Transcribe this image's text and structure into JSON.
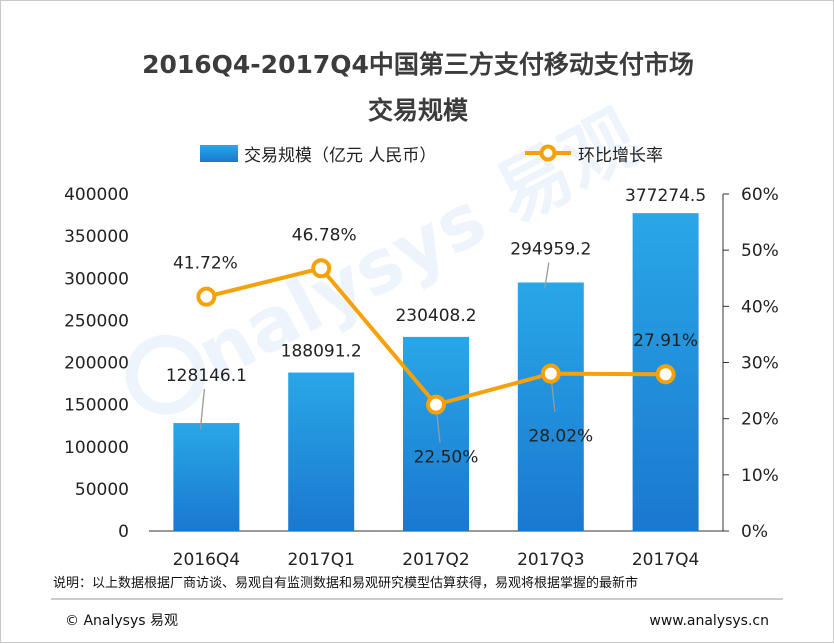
{
  "chart_data": {
    "type": "bar",
    "title_line1": "2016Q4-2017Q4中国第三方支付移动支付市场",
    "title_line2": "交易规模",
    "categories": [
      "2016Q4",
      "2017Q1",
      "2017Q2",
      "2017Q3",
      "2017Q4"
    ],
    "series": [
      {
        "name": "交易规模（亿元 人民币）",
        "type": "bar",
        "axis": "left",
        "values": [
          128146.1,
          188091.2,
          230408.2,
          294959.2,
          377274.5
        ],
        "labels": [
          "128146.1",
          "188091.2",
          "230408.2",
          "294959.2",
          "377274.5"
        ]
      },
      {
        "name": "环比增长率",
        "type": "line",
        "axis": "right",
        "values": [
          41.72,
          46.78,
          22.5,
          28.02,
          27.91
        ],
        "labels": [
          "41.72%",
          "46.78%",
          "22.50%",
          "28.02%",
          "27.91%"
        ]
      }
    ],
    "y_left": {
      "min": 0,
      "max": 400000,
      "ticks": [
        "0",
        "50000",
        "100000",
        "150000",
        "200000",
        "250000",
        "300000",
        "350000",
        "400000"
      ]
    },
    "y_right": {
      "min": 0,
      "max": 60,
      "ticks": [
        "0%",
        "10%",
        "20%",
        "30%",
        "40%",
        "50%",
        "60%"
      ]
    },
    "legend_position": "top",
    "grid": false,
    "colors": {
      "bar_top": "#29a7e8",
      "bar_bottom": "#1a78cf",
      "line": "#f4a10a",
      "marker_fill": "#ffffff",
      "axis": "#333333",
      "leader": "#9a9a9a"
    }
  },
  "note": "说明：以上数据根据厂商访谈、易观自有监测数据和易观研究模型估算获得，易观将根据掌握的最新市",
  "footer": {
    "copyright": "© Analysys 易观",
    "url": "www.analysys.cn"
  },
  "watermark": "Analysys 易观"
}
